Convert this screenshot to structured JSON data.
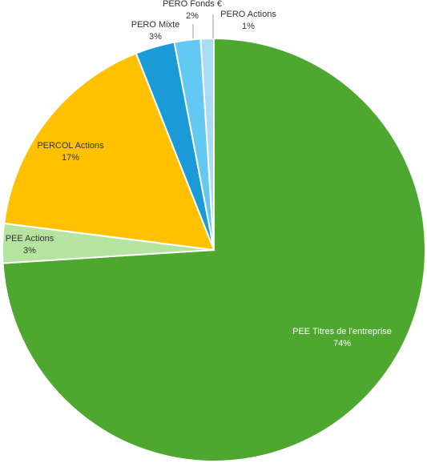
{
  "chart_data": {
    "type": "pie",
    "categories": [
      "PEE Titres de l'entreprise",
      "PEE Actions",
      "PERCOL Actions",
      "PERO Mixte",
      "PERO Fonds €",
      "PERO Actions"
    ],
    "values": [
      74,
      3,
      17,
      3,
      2,
      1
    ],
    "value_labels": [
      "74%",
      "3%",
      "17%",
      "3%",
      "2%",
      "1%"
    ],
    "colors": [
      "#4ea72e",
      "#b5e4a0",
      "#ffc000",
      "#1a9bd7",
      "#63c9f2",
      "#a8dcf5"
    ]
  }
}
